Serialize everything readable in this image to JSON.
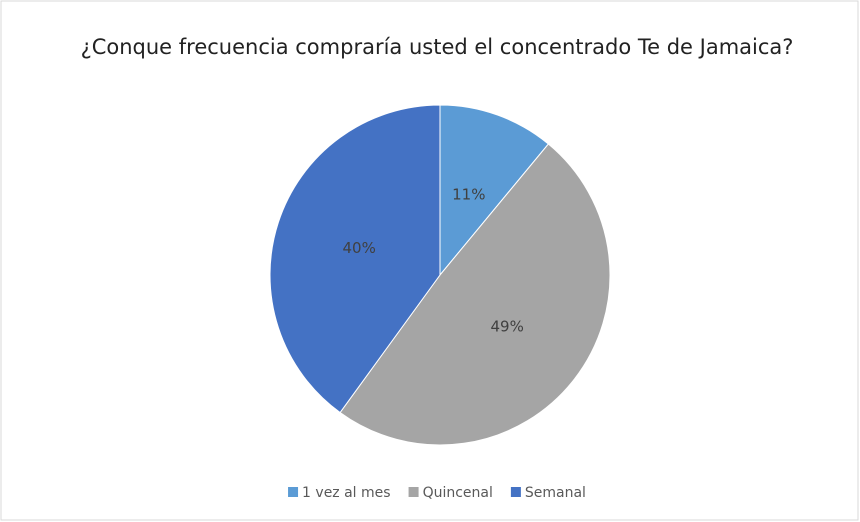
{
  "chart_data": {
    "type": "pie",
    "title": "¿Conque frecuencia compraría usted el concentrado Te de Jamaica?",
    "categories": [
      "1 vez al mes",
      "Quincenal",
      "Semanal"
    ],
    "values": [
      11,
      49,
      40
    ],
    "value_labels": [
      "11%",
      "49%",
      "40%"
    ],
    "colors": [
      "#5b9bd5",
      "#a5a5a5",
      "#4472c4"
    ],
    "legend": "bottom"
  }
}
